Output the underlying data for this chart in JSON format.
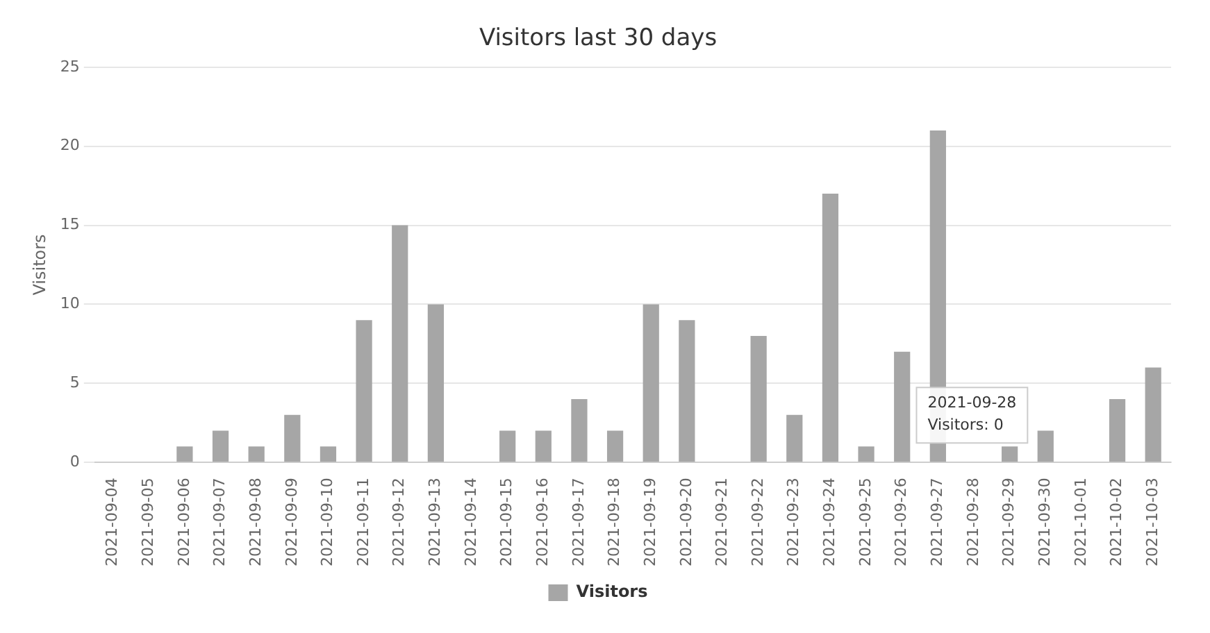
{
  "chart_data": {
    "type": "bar",
    "title": "Visitors last 30 days",
    "ylabel": "Visitors",
    "categories": [
      "2021-09-04",
      "2021-09-05",
      "2021-09-06",
      "2021-09-07",
      "2021-09-08",
      "2021-09-09",
      "2021-09-10",
      "2021-09-11",
      "2021-09-12",
      "2021-09-13",
      "2021-09-14",
      "2021-09-15",
      "2021-09-16",
      "2021-09-17",
      "2021-09-18",
      "2021-09-19",
      "2021-09-20",
      "2021-09-21",
      "2021-09-22",
      "2021-09-23",
      "2021-09-24",
      "2021-09-25",
      "2021-09-26",
      "2021-09-27",
      "2021-09-28",
      "2021-09-29",
      "2021-09-30",
      "2021-10-01",
      "2021-10-02",
      "2021-10-03"
    ],
    "series": [
      {
        "name": "Visitors",
        "color": "#a6a6a6",
        "values": [
          0,
          0,
          1,
          2,
          1,
          3,
          1,
          9,
          15,
          10,
          0,
          2,
          2,
          4,
          2,
          10,
          9,
          0,
          8,
          3,
          17,
          1,
          7,
          21,
          0,
          1,
          2,
          0,
          4,
          6
        ]
      }
    ],
    "ylim": [
      0,
      25
    ],
    "yticks": [
      0,
      5,
      10,
      15,
      20,
      25
    ],
    "grid": "y",
    "legend": "bottom",
    "annotations": [
      "2021-09-28",
      "Visitors: 0"
    ]
  }
}
